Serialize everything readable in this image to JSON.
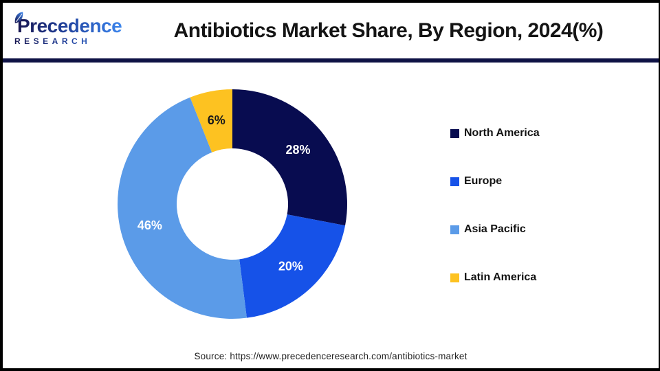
{
  "header": {
    "logo": {
      "wordmark": "Precedence",
      "subtitle": "RESEARCH"
    },
    "title": "Antibiotics Market Share, By Region, 2024(%)"
  },
  "chart_data": {
    "type": "pie",
    "subtype": "donut",
    "title": "Antibiotics Market Share, By Region, 2024(%)",
    "categories": [
      "North America",
      "Europe",
      "Asia Pacific",
      "Latin America"
    ],
    "values": [
      28,
      20,
      46,
      6
    ],
    "labels": [
      "28%",
      "20%",
      "46%",
      "6%"
    ],
    "unit": "%",
    "total": 100,
    "colors": [
      "#080C50",
      "#1652E8",
      "#5B9BE8",
      "#FDC221"
    ],
    "label_colors": [
      "#FFFFFF",
      "#FFFFFF",
      "#FFFFFF",
      "#1A1A1A"
    ],
    "start_angle_deg": 0,
    "direction": "clockwise",
    "inner_radius_ratio": 0.485,
    "legend_position": "right"
  },
  "footer": {
    "source": "Source: https://www.precedenceresearch.com/antibiotics-market"
  },
  "theme": {
    "divider_color": "#0E1245",
    "border_color": "#000000",
    "background": "#FFFFFF"
  }
}
